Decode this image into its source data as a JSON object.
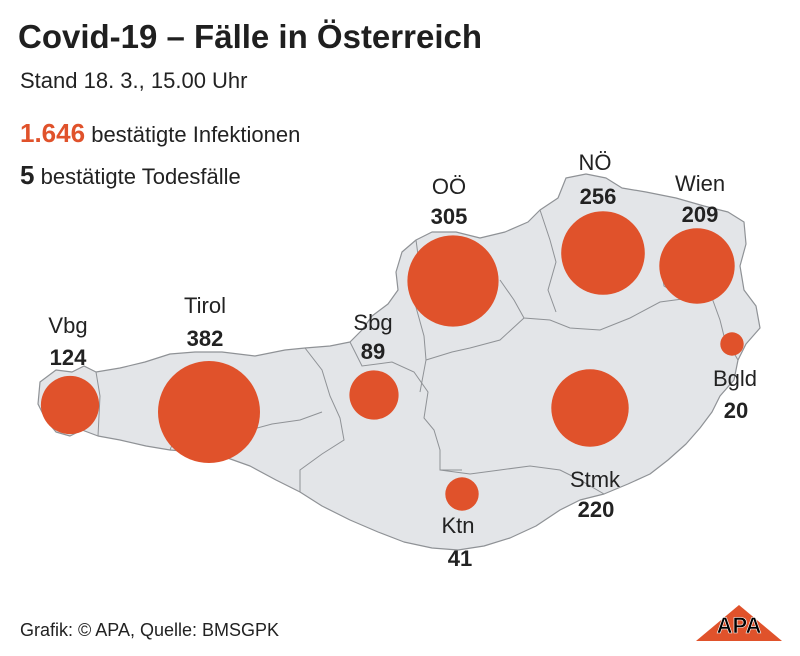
{
  "title": "Covid-19 – Fälle in Österreich",
  "subtitle": "Stand 18. 3., 15.00 Uhr",
  "stats": {
    "infections_value": "1.646",
    "infections_label": "bestätigte Infektionen",
    "deaths_value": "5",
    "deaths_label": "bestätigte Todesfälle"
  },
  "colors": {
    "bubble": "#e0522b",
    "land": "#e3e5e8",
    "border": "#8f9296"
  },
  "regions": [
    {
      "name": "Vbg",
      "cases": 124
    },
    {
      "name": "Tirol",
      "cases": 382
    },
    {
      "name": "Sbg",
      "cases": 89
    },
    {
      "name": "OÖ",
      "cases": 305
    },
    {
      "name": "NÖ",
      "cases": 256
    },
    {
      "name": "Wien",
      "cases": 209
    },
    {
      "name": "Bgld",
      "cases": 20
    },
    {
      "name": "Stmk",
      "cases": 220
    },
    {
      "name": "Ktn",
      "cases": 41
    }
  ],
  "footer": "Grafik: © APA, Quelle: BMSGPK",
  "logo_text": "APA"
}
